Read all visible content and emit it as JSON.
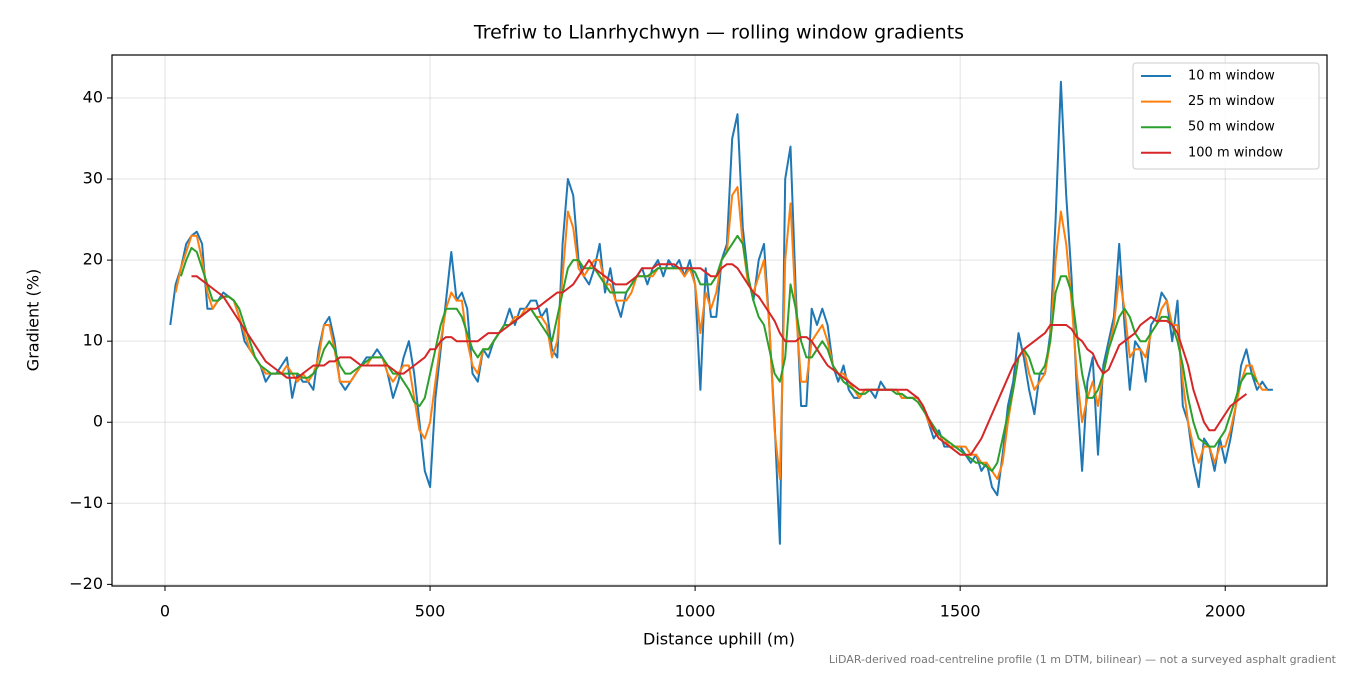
{
  "chart_data": {
    "type": "line",
    "title": "Trefriw to Llanrhychwyn — rolling window gradients",
    "x_label": "Distance uphill (m)",
    "y_label": "Gradient (%)",
    "footnote": "LiDAR-derived road-centreline profile (1 m DTM, bilinear) — not a surveyed asphalt gradient",
    "xlim": [
      -100,
      2192
    ],
    "ylim": [
      -20.2,
      45.3
    ],
    "xticks": [
      0,
      500,
      1000,
      1500,
      2000
    ],
    "yticks": [
      {
        "value": -20,
        "label": "−20"
      },
      {
        "value": -10,
        "label": "−10"
      },
      0,
      10,
      20,
      30,
      40
    ],
    "grid": true,
    "legend": "upper right",
    "x": [
      10,
      20,
      30,
      40,
      50,
      60,
      70,
      80,
      90,
      100,
      110,
      120,
      130,
      140,
      150,
      160,
      170,
      180,
      190,
      200,
      210,
      220,
      230,
      240,
      250,
      260,
      270,
      280,
      290,
      300,
      310,
      320,
      330,
      340,
      350,
      360,
      370,
      380,
      390,
      400,
      410,
      420,
      430,
      440,
      450,
      460,
      470,
      480,
      490,
      500,
      510,
      520,
      530,
      540,
      550,
      560,
      570,
      580,
      590,
      600,
      610,
      620,
      630,
      640,
      650,
      660,
      670,
      680,
      690,
      700,
      710,
      720,
      730,
      740,
      750,
      760,
      770,
      780,
      790,
      800,
      810,
      820,
      830,
      840,
      850,
      860,
      870,
      880,
      890,
      900,
      910,
      920,
      930,
      940,
      950,
      960,
      970,
      980,
      990,
      1000,
      1010,
      1020,
      1030,
      1040,
      1050,
      1060,
      1070,
      1080,
      1090,
      1100,
      1110,
      1120,
      1130,
      1140,
      1150,
      1160,
      1170,
      1180,
      1190,
      1200,
      1210,
      1220,
      1230,
      1240,
      1250,
      1260,
      1270,
      1280,
      1290,
      1300,
      1310,
      1320,
      1330,
      1340,
      1350,
      1360,
      1370,
      1380,
      1390,
      1400,
      1410,
      1420,
      1430,
      1440,
      1450,
      1460,
      1470,
      1480,
      1490,
      1500,
      1510,
      1520,
      1530,
      1540,
      1550,
      1560,
      1570,
      1580,
      1590,
      1600,
      1610,
      1620,
      1630,
      1640,
      1650,
      1660,
      1670,
      1680,
      1690,
      1700,
      1710,
      1720,
      1730,
      1740,
      1750,
      1760,
      1770,
      1780,
      1790,
      1800,
      1810,
      1820,
      1830,
      1840,
      1850,
      1860,
      1870,
      1880,
      1890,
      1900,
      1910,
      1920,
      1930,
      1940,
      1950,
      1960,
      1970,
      1980,
      1990,
      2000,
      2010,
      2020,
      2030,
      2040,
      2050,
      2060,
      2070,
      2080,
      2090
    ],
    "series": [
      {
        "name": "10 m window",
        "color": "#1f77b4",
        "values": [
          12,
          17,
          19,
          22,
          23,
          23.5,
          22,
          14,
          14,
          15,
          16,
          15.5,
          15,
          13,
          10,
          9,
          8,
          7,
          5,
          6,
          6,
          7,
          8,
          3,
          6,
          5,
          5,
          4,
          9,
          12,
          13,
          10,
          5,
          4,
          5,
          6,
          7,
          8,
          8,
          9,
          8,
          6,
          3,
          5,
          8,
          10,
          6,
          0,
          -6,
          -8,
          3,
          9,
          15,
          21,
          15,
          16,
          14,
          6,
          5,
          9,
          8,
          10,
          11,
          12,
          14,
          12,
          14,
          14,
          15,
          15,
          13,
          14,
          9,
          8,
          22,
          30,
          28,
          20,
          18,
          17,
          19,
          22,
          16,
          19,
          15,
          13,
          16,
          17,
          18,
          19,
          17,
          19,
          20,
          18,
          20,
          19,
          20,
          18,
          20,
          17,
          4,
          19,
          13,
          13,
          20,
          22,
          35,
          38,
          24,
          18,
          15,
          20,
          22,
          12,
          0,
          -15,
          30,
          34,
          16,
          2,
          2,
          14,
          12,
          14,
          12,
          7,
          5,
          7,
          4,
          3,
          3,
          4,
          4,
          3,
          5,
          4,
          4,
          4,
          3,
          3,
          3,
          3,
          2,
          0,
          -2,
          -1,
          -3,
          -3,
          -3,
          -3,
          -4,
          -5,
          -4,
          -6,
          -5,
          -8,
          -9,
          -4,
          2,
          5,
          11,
          8,
          4,
          1,
          6,
          6,
          11,
          25,
          42,
          28,
          18,
          4,
          -6,
          5,
          8,
          -4,
          7,
          10,
          13,
          22,
          12,
          4,
          10,
          9,
          5,
          12,
          13,
          16,
          15,
          10,
          15,
          2,
          0,
          -5,
          -8,
          -2,
          -3,
          -6,
          -2,
          -5,
          -2,
          2,
          7,
          9,
          6,
          4,
          5,
          4,
          4
        ]
      },
      {
        "name": "25 m window",
        "color": "#ff7f0e",
        "values": [
          null,
          16,
          19,
          21,
          23,
          23,
          20,
          16,
          14,
          15,
          15.5,
          15.5,
          15,
          13,
          11,
          9,
          8,
          7,
          6,
          6,
          6,
          6,
          7,
          6,
          5,
          6,
          5,
          6,
          8,
          12,
          12,
          9,
          5,
          5,
          5,
          6,
          7,
          7,
          8,
          8,
          8,
          6,
          5,
          6,
          7,
          7,
          3,
          -1,
          -2,
          0,
          5,
          10,
          14,
          16,
          15,
          15,
          10,
          7,
          6,
          9,
          9,
          10,
          11,
          12,
          12,
          13,
          13,
          14,
          14,
          13,
          13,
          12,
          8,
          10,
          18,
          26,
          24,
          19,
          18,
          19,
          20,
          20,
          17,
          17,
          15,
          15,
          15,
          16,
          18,
          18,
          18,
          18,
          19,
          19,
          19,
          19,
          19,
          18,
          19,
          17,
          11,
          16,
          14,
          16,
          20,
          21,
          28,
          29,
          22,
          17,
          16,
          18,
          20,
          12,
          -1,
          -7,
          20,
          27,
          14,
          5,
          5,
          10,
          11,
          12,
          10,
          7,
          6,
          6,
          5,
          4,
          3,
          4,
          4,
          4,
          4,
          4,
          4,
          4,
          3,
          3,
          3,
          3,
          2,
          0,
          -1,
          -2,
          -2,
          -3,
          -3,
          -3,
          -3,
          -4,
          -4,
          -5,
          -5,
          -6,
          -7,
          -5,
          0,
          4,
          8,
          9,
          6,
          4,
          5,
          6,
          10,
          20,
          26,
          22,
          15,
          6,
          0,
          3,
          5,
          2,
          6,
          9,
          12,
          18,
          14,
          8,
          9,
          9,
          8,
          11,
          12,
          14,
          15,
          12,
          12,
          5,
          0,
          -3,
          -5,
          -3,
          -3,
          -5,
          -3,
          -3,
          -1,
          2,
          5,
          7,
          7,
          5,
          4,
          4,
          null
        ]
      },
      {
        "name": "50 m window",
        "color": "#2ca02c",
        "values": [
          null,
          null,
          18,
          20,
          21.5,
          21,
          19,
          17,
          15,
          15,
          15.5,
          15.5,
          15,
          14,
          12,
          10,
          8,
          7,
          6.5,
          6,
          6,
          6,
          6,
          6,
          6,
          5.5,
          5.5,
          6,
          7,
          9,
          10,
          9,
          7,
          6,
          6,
          6.5,
          7,
          7.5,
          8,
          8,
          8,
          7,
          6,
          6,
          5,
          4,
          2.5,
          2,
          3,
          6,
          9,
          12,
          14,
          14,
          14,
          13,
          11,
          9,
          8,
          9,
          9,
          10,
          11,
          12,
          12,
          12.5,
          13,
          13.5,
          14,
          13,
          12,
          11,
          10,
          13,
          16,
          19,
          20,
          20,
          19,
          19,
          19,
          18,
          17,
          16,
          16,
          16,
          16,
          17,
          18,
          18,
          18,
          18.5,
          19,
          19,
          19,
          19,
          19,
          19,
          19,
          18.5,
          17,
          17,
          17,
          18,
          20,
          21,
          22,
          23,
          22,
          18,
          15,
          13,
          12,
          9,
          6,
          5,
          8,
          17,
          14,
          10,
          8,
          8,
          9,
          10,
          9,
          7,
          6,
          5,
          4.5,
          4,
          3.5,
          3.5,
          4,
          4,
          4,
          4,
          4,
          3.5,
          3.5,
          3,
          3,
          2.5,
          1.5,
          0.5,
          -0.5,
          -1.5,
          -2,
          -2.5,
          -3,
          -3.5,
          -4,
          -4.5,
          -5,
          -5,
          -5.5,
          -6,
          -5,
          -2,
          1,
          4,
          8,
          9,
          8,
          6,
          6,
          7,
          10,
          16,
          18,
          18,
          16,
          11,
          6,
          3,
          3,
          4,
          6,
          9,
          11,
          13,
          14,
          13,
          11,
          10,
          10,
          11,
          12,
          13,
          13,
          12,
          10,
          7,
          3,
          0,
          -2,
          -2.5,
          -3,
          -3,
          -2,
          -1,
          1,
          3,
          5,
          6,
          6,
          5,
          null,
          null,
          null
        ]
      },
      {
        "name": "100 m window",
        "color": "#d62728",
        "values": [
          null,
          null,
          null,
          null,
          18,
          18,
          17.5,
          17,
          16.5,
          16,
          15.5,
          14.5,
          13.5,
          12.5,
          11.5,
          10.5,
          9.5,
          8.5,
          7.5,
          7,
          6.5,
          6,
          5.5,
          5.5,
          5.5,
          6,
          6.5,
          7,
          7,
          7,
          7.5,
          7.5,
          8,
          8,
          8,
          7.5,
          7,
          7,
          7,
          7,
          7,
          7,
          6.5,
          6,
          6,
          6.5,
          7,
          7.5,
          8,
          9,
          9,
          10,
          10.5,
          10.5,
          10,
          10,
          10,
          10,
          10,
          10.5,
          11,
          11,
          11,
          11.5,
          12,
          12.5,
          13,
          13.5,
          14,
          14,
          14.5,
          15,
          15.5,
          16,
          16,
          16.5,
          17,
          18,
          19,
          20,
          19,
          18.5,
          18,
          17.5,
          17,
          17,
          17,
          17.5,
          18,
          19,
          19,
          19,
          19.5,
          19.5,
          19.5,
          19.5,
          19,
          19,
          19,
          19,
          19,
          18.5,
          18,
          18,
          19,
          19.5,
          19.5,
          19,
          18,
          17,
          16,
          15.5,
          14.5,
          13.5,
          12.5,
          11,
          10,
          10,
          10,
          10.5,
          10.5,
          10,
          9,
          8,
          7,
          6.5,
          6,
          5.5,
          5,
          4.5,
          4,
          4,
          4,
          4,
          4,
          4,
          4,
          4,
          4,
          4,
          3.5,
          3,
          2,
          0.5,
          -1,
          -2,
          -2.5,
          -3,
          -3.5,
          -4,
          -4,
          -4,
          -3,
          -2,
          -0.5,
          1,
          2.5,
          4,
          5.5,
          7,
          8,
          9,
          9.5,
          10,
          10.5,
          11,
          12,
          12,
          12,
          12,
          11.5,
          10.5,
          10,
          9,
          8.5,
          7,
          6,
          6.5,
          8,
          9.5,
          10,
          10.5,
          11,
          12,
          12.5,
          13,
          12.5,
          12.5,
          12.5,
          12,
          11,
          9,
          7,
          4,
          2,
          0,
          -1,
          -1,
          0,
          1,
          2,
          2.5,
          3,
          3.5,
          null,
          null,
          null,
          null,
          null
        ]
      }
    ]
  }
}
